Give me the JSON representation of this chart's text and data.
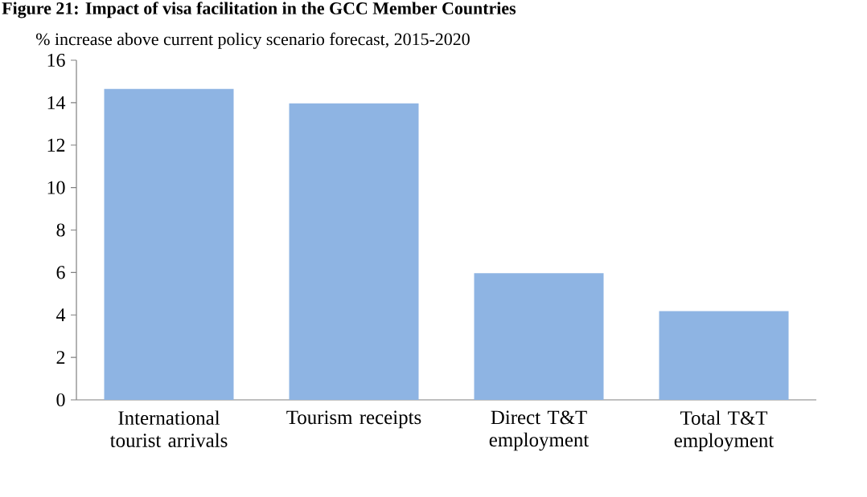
{
  "chart_data": {
    "type": "bar",
    "title": "Figure 21: Impact of visa facilitation in the GCC Member Countries",
    "ylabel": "% increase above current policy scenario forecast, 2015-2020",
    "categories": [
      "International tourist arrivals",
      "Tourism receipts",
      "Direct T&T employment",
      "Total T&T employment"
    ],
    "values": [
      14.65,
      13.97,
      5.97,
      4.18
    ],
    "color": "#8eb4e3",
    "ylim": [
      0,
      16
    ],
    "yticks": [
      0,
      2,
      4,
      6,
      8,
      10,
      12,
      14,
      16
    ]
  }
}
